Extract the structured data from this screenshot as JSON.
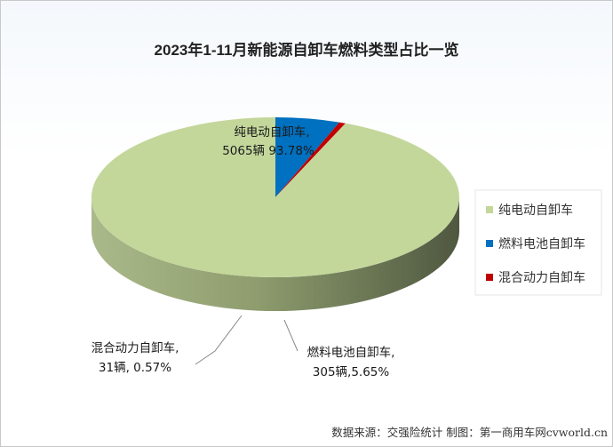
{
  "chart_data": {
    "type": "pie",
    "title": "2023年1-11月新能源自卸车燃料类型占比一览",
    "slices": [
      {
        "name": "纯电动自卸车",
        "count": 5065,
        "percent": 93.78,
        "color": "#c4d79b",
        "label_line1": "纯电动自卸车,",
        "label_line2": "5065辆 93.78%"
      },
      {
        "name": "燃料电池自卸车",
        "count": 305,
        "percent": 5.65,
        "color": "#0070c0",
        "label_line1": "燃料电池自卸车,",
        "label_line2": "305辆,5.65%"
      },
      {
        "name": "混合动力自卸车",
        "count": 31,
        "percent": 0.57,
        "color": "#c00000",
        "label_line1": "混合动力自卸车,",
        "label_line2": "31辆, 0.57%"
      }
    ],
    "legend": {
      "position": "right",
      "entries": [
        "纯电动自卸车",
        "燃料电池自卸车",
        "混合动力自卸车"
      ]
    },
    "source": "数据来源：交强险统计 制图：第一商用车网cvworld.cn"
  }
}
